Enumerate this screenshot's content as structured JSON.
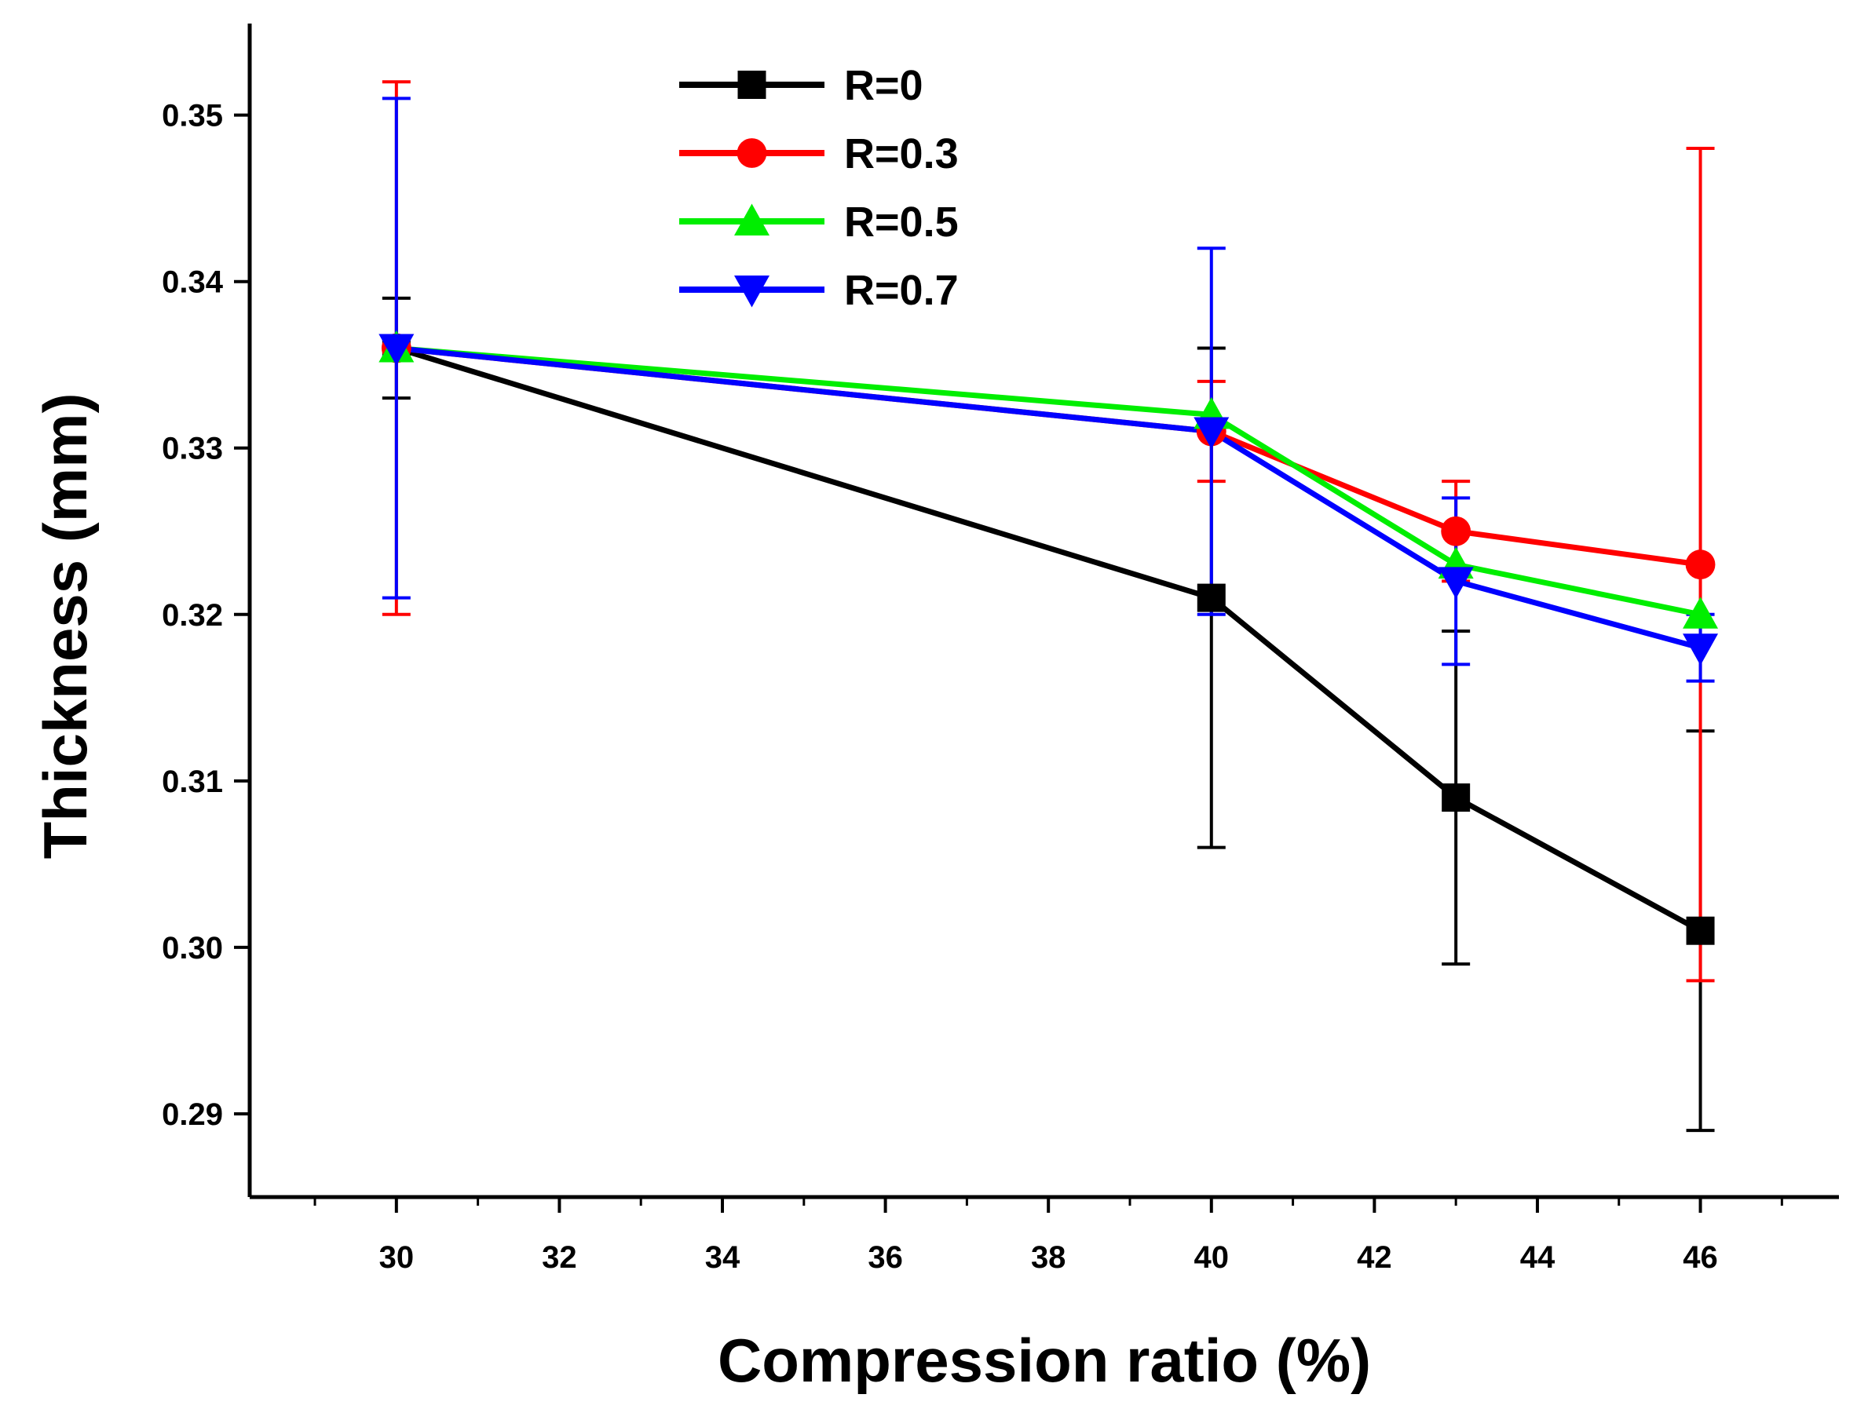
{
  "chart_data": {
    "type": "line",
    "title": "",
    "xlabel": "Compression ratio (%)",
    "ylabel": "Thickness (mm)",
    "xlim": [
      28.2,
      47.7
    ],
    "ylim": [
      0.285,
      0.3555
    ],
    "xticks": [
      30,
      32,
      34,
      36,
      38,
      40,
      42,
      44,
      46
    ],
    "xtick_labels": [
      "30",
      "32",
      "34",
      "36",
      "38",
      "40",
      "42",
      "44",
      "46"
    ],
    "yticks": [
      0.29,
      0.3,
      0.31,
      0.32,
      0.33,
      0.34,
      0.35
    ],
    "ytick_labels": [
      "0.29",
      "0.30",
      "0.31",
      "0.32",
      "0.33",
      "0.34",
      "0.35"
    ],
    "x": [
      30,
      40,
      43,
      46
    ],
    "legend_position": "top-center",
    "grid": false,
    "series": [
      {
        "name": "R=0",
        "color": "#000000",
        "marker": "square",
        "values": [
          0.336,
          0.321,
          0.309,
          0.301
        ],
        "error": [
          0.003,
          0.015,
          0.01,
          0.012
        ]
      },
      {
        "name": "R=0.3",
        "color": "#ff0000",
        "marker": "circle",
        "values": [
          0.336,
          0.331,
          0.325,
          0.323
        ],
        "error": [
          0.016,
          0.003,
          0.003,
          0.025
        ]
      },
      {
        "name": "R=0.5",
        "color": "#00ee00",
        "marker": "triangle-up",
        "values": [
          0.336,
          0.332,
          0.323,
          0.32
        ],
        "error": [
          0.0,
          0.0,
          0.0,
          0.0
        ]
      },
      {
        "name": "R=0.7",
        "color": "#0000ff",
        "marker": "triangle-down",
        "values": [
          0.336,
          0.331,
          0.322,
          0.318
        ],
        "error": [
          0.015,
          0.011,
          0.005,
          0.002
        ]
      }
    ]
  }
}
